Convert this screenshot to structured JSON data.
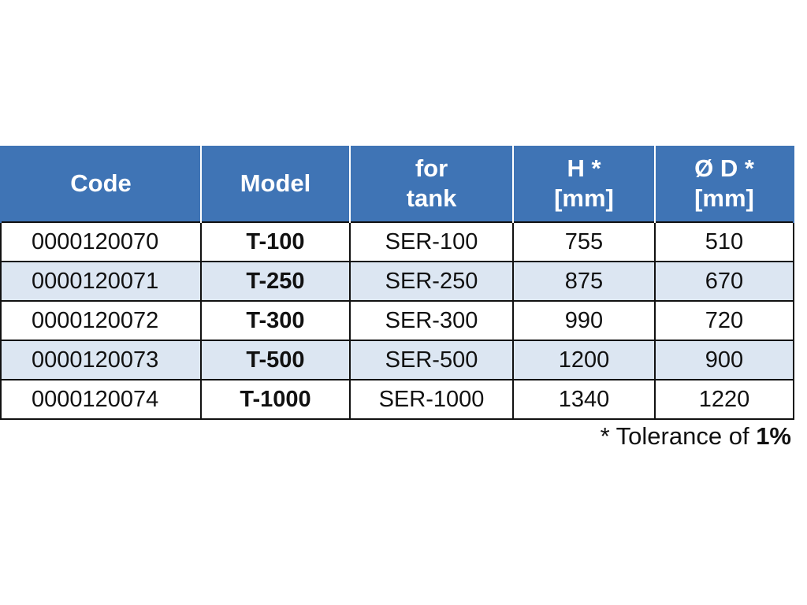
{
  "table": {
    "headers": [
      {
        "line1": "Code",
        "line2": ""
      },
      {
        "line1": "Model",
        "line2": ""
      },
      {
        "line1": "for",
        "line2": "tank"
      },
      {
        "line1": "H *",
        "line2": "[mm]"
      },
      {
        "line1": "Ø D *",
        "line2": "[mm]"
      }
    ],
    "rows": [
      {
        "code": "0000120070",
        "model": "T-100",
        "tank": "SER-100",
        "h": "755",
        "d": "510"
      },
      {
        "code": "0000120071",
        "model": "T-250",
        "tank": "SER-250",
        "h": "875",
        "d": "670"
      },
      {
        "code": "0000120072",
        "model": "T-300",
        "tank": "SER-300",
        "h": "990",
        "d": "720"
      },
      {
        "code": "0000120073",
        "model": "T-500",
        "tank": "SER-500",
        "h": "1200",
        "d": "900"
      },
      {
        "code": "0000120074",
        "model": "T-1000",
        "tank": "SER-1000",
        "h": "1340",
        "d": "1220"
      }
    ]
  },
  "footnote": {
    "prefix": "* Tolerance of ",
    "value": "1%"
  },
  "colors": {
    "header_bg": "#3f74b5",
    "header_text": "#ffffff",
    "row_alt_bg": "#dce6f2"
  }
}
